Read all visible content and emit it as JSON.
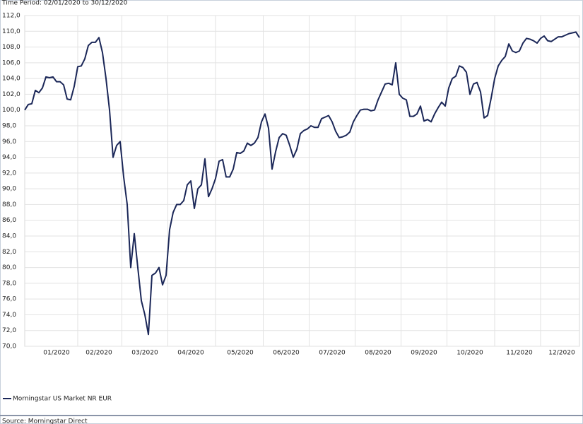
{
  "chart_data": {
    "type": "line",
    "subtitle": "Time Period: 02/01/2020 to 30/12/2020",
    "source": "Source: Morningstar Direct",
    "categories": [
      null,
      null,
      null,
      null,
      null,
      null,
      null,
      null,
      null,
      "01/2020",
      null,
      null,
      null,
      null,
      null,
      null,
      null,
      null,
      null,
      null,
      null,
      "02/2020",
      null,
      null,
      null,
      null,
      null,
      null,
      null,
      null,
      null,
      null,
      null,
      null,
      "03/2020",
      null,
      null,
      null,
      null,
      null,
      null,
      null,
      null,
      null,
      null,
      null,
      null,
      "04/2020",
      null,
      null,
      null,
      null,
      null,
      null,
      null,
      null,
      null,
      null,
      null,
      null,
      null,
      "05/2020",
      null,
      null,
      null,
      null,
      null,
      null,
      null,
      null,
      null,
      null,
      null,
      null,
      "06/2020",
      null,
      null,
      null,
      null,
      null,
      null,
      null,
      null,
      null,
      null,
      null,
      null,
      "07/2020",
      null,
      null,
      null,
      null,
      null,
      null,
      null,
      null,
      null,
      null,
      null,
      null,
      "08/2020",
      null,
      null,
      null,
      null,
      null,
      null,
      null,
      null,
      null,
      null,
      null,
      null,
      "09/2020",
      null,
      null,
      null,
      null,
      null,
      null,
      null,
      null,
      null,
      null,
      null,
      null,
      "10/2020",
      null,
      null,
      null,
      null,
      null,
      null,
      null,
      null,
      null,
      null,
      null,
      null,
      null,
      "11/2020",
      null,
      null,
      null,
      null,
      null,
      null,
      null,
      null,
      null,
      null,
      null,
      "12/2020",
      null,
      null,
      null,
      null,
      null
    ],
    "series": [
      {
        "name": "Morningstar US Market NR EUR",
        "color": "#1b2758",
        "values": [
          100,
          100.7,
          100.8,
          102.5,
          102.2,
          102.8,
          104.2,
          104.1,
          104.2,
          103.6,
          103.6,
          103.2,
          101.4,
          101.3,
          103,
          105.5,
          105.6,
          106.5,
          108.2,
          108.6,
          108.6,
          109.2,
          107.3,
          104,
          100,
          94,
          95.5,
          96,
          91.5,
          88,
          80,
          84.3,
          80,
          75.8,
          74,
          71.5,
          79,
          79.3,
          80,
          77.8,
          79,
          84.8,
          87,
          88,
          88,
          88.5,
          90.5,
          91,
          87.5,
          90,
          90.5,
          93.8,
          89,
          90,
          91.3,
          93.5,
          93.7,
          91.5,
          91.5,
          92.5,
          94.6,
          94.5,
          94.8,
          95.8,
          95.5,
          95.8,
          96.5,
          98.5,
          99.5,
          97.7,
          92.5,
          94.7,
          96.5,
          97,
          96.8,
          95.5,
          94,
          95,
          97,
          97.4,
          97.6,
          98,
          97.8,
          97.8,
          98.9,
          99.1,
          99.3,
          98.5,
          97.3,
          96.5,
          96.6,
          96.8,
          97.2,
          98.5,
          99.3,
          100,
          100.1,
          100.1,
          99.9,
          100,
          101.3,
          102.3,
          103.3,
          103.4,
          103.2,
          106,
          102,
          101.5,
          101.3,
          99.2,
          99.2,
          99.5,
          100.5,
          98.6,
          98.8,
          98.5,
          99.5,
          100.3,
          101,
          100.5,
          102.8,
          104,
          104.3,
          105.6,
          105.4,
          104.8,
          102,
          103.3,
          103.5,
          102.3,
          99,
          99.3,
          101.5,
          104,
          105.6,
          106.3,
          106.8,
          108.4,
          107.5,
          107.3,
          107.5,
          108.5,
          109.1,
          109,
          108.8,
          108.5,
          109.1,
          109.4,
          108.8,
          108.7,
          109,
          109.3,
          109.3,
          109.5,
          109.7,
          109.8,
          109.9,
          109.2
        ]
      }
    ],
    "ylim": [
      70,
      112
    ],
    "yticks": [
      {
        "value": 70,
        "label": "70,0"
      },
      {
        "value": 72,
        "label": "72,0"
      },
      {
        "value": 74,
        "label": "74,0"
      },
      {
        "value": 76,
        "label": "76,0"
      },
      {
        "value": 78,
        "label": "78,0"
      },
      {
        "value": 80,
        "label": "80,0"
      },
      {
        "value": 82,
        "label": "82,0"
      },
      {
        "value": 84,
        "label": "84,0"
      },
      {
        "value": 86,
        "label": "86,0"
      },
      {
        "value": 88,
        "label": "88,0"
      },
      {
        "value": 90,
        "label": "90,0"
      },
      {
        "value": 92,
        "label": "92,0"
      },
      {
        "value": 94,
        "label": "94,0"
      },
      {
        "value": 96,
        "label": "96,0"
      },
      {
        "value": 98,
        "label": "98,0"
      },
      {
        "value": 100,
        "label": "100,0"
      },
      {
        "value": 102,
        "label": "102,0"
      },
      {
        "value": 104,
        "label": "104,0"
      },
      {
        "value": 106,
        "label": "106,0"
      },
      {
        "value": 108,
        "label": "108,0"
      },
      {
        "value": 110,
        "label": "110,0"
      },
      {
        "value": 112,
        "label": "112,0"
      }
    ],
    "grid": true
  }
}
